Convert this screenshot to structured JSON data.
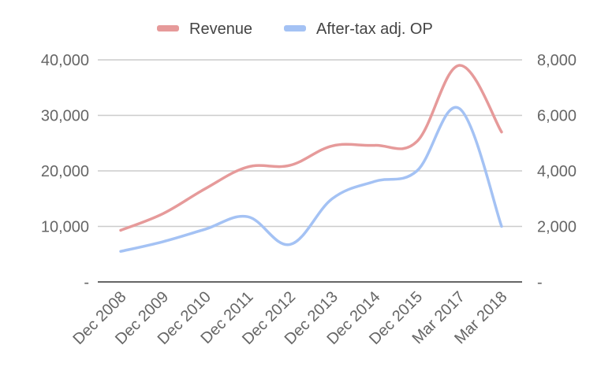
{
  "chart_data": {
    "type": "line",
    "categories": [
      "Dec 2008",
      "Dec 2009",
      "Dec 2010",
      "Dec 2011",
      "Dec 2012",
      "Dec 2013",
      "Dec 2014",
      "Dec 2015",
      "Mar 2017",
      "Mar 2018"
    ],
    "series": [
      {
        "name": "Revenue",
        "axis": "left",
        "color": "#e69a9a",
        "values": [
          9300,
          12300,
          16800,
          20700,
          21000,
          24500,
          24600,
          25300,
          39000,
          27000
        ]
      },
      {
        "name": "After-tax adj. OP",
        "axis": "right",
        "color": "#a4c2f4",
        "values": [
          1100,
          1450,
          1900,
          2350,
          1350,
          3000,
          3620,
          4000,
          6250,
          2000
        ]
      }
    ],
    "left_axis": {
      "ylim": [
        0,
        40000
      ],
      "ticks": [
        0,
        10000,
        20000,
        30000,
        40000
      ],
      "tick_labels": [
        "-",
        "10,000",
        "20,000",
        "30,000",
        "40,000"
      ]
    },
    "right_axis": {
      "ylim": [
        0,
        8000
      ],
      "ticks": [
        0,
        2000,
        4000,
        6000,
        8000
      ],
      "tick_labels": [
        "-",
        "2,000",
        "4,000",
        "6,000",
        "8,000"
      ]
    },
    "grid": true,
    "legend_position": "top-center",
    "smooth": true
  }
}
